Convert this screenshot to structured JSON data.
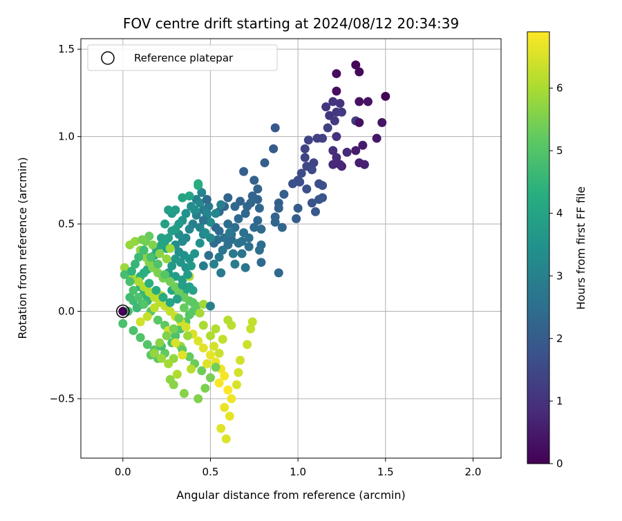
{
  "chart_data": {
    "type": "scatter",
    "title": "FOV centre drift starting at 2024/08/12 20:34:39",
    "xlabel": "Angular distance from reference (arcmin)",
    "ylabel": "Rotation from reference (arcmin)",
    "xlim": [
      -0.24,
      2.16
    ],
    "ylim": [
      -0.84,
      1.56
    ],
    "xticks": [
      0.0,
      0.5,
      1.0,
      1.5,
      2.0
    ],
    "xtick_labels": [
      "0.0",
      "0.5",
      "1.0",
      "1.5",
      "2.0"
    ],
    "yticks": [
      -0.5,
      0.0,
      0.5,
      1.0,
      1.5
    ],
    "ytick_labels": [
      "−0.5",
      "0.0",
      "0.5",
      "1.0",
      "1.5"
    ],
    "grid": true,
    "legend": {
      "placement": "top-left",
      "entries": [
        "Reference platepar"
      ]
    },
    "reference_point": {
      "x": 0.0,
      "y": 0.0
    },
    "colorbar": {
      "label": "Hours from first FF file",
      "min": 0,
      "max": 6.9,
      "ticks": [
        0,
        1,
        2,
        3,
        4,
        5,
        6
      ],
      "tick_labels": [
        "0",
        "1",
        "2",
        "3",
        "4",
        "5",
        "6"
      ],
      "colormap": "viridis"
    },
    "points": [
      [
        1.5,
        1.23,
        0.05
      ],
      [
        1.33,
        1.41,
        0.1
      ],
      [
        1.35,
        1.37,
        0.15
      ],
      [
        1.22,
        1.36,
        0.2
      ],
      [
        1.22,
        1.26,
        0.25
      ],
      [
        1.35,
        1.2,
        0.3
      ],
      [
        1.4,
        1.2,
        0.35
      ],
      [
        1.48,
        1.08,
        0.4
      ],
      [
        1.45,
        0.99,
        0.45
      ],
      [
        1.37,
        0.95,
        0.5
      ],
      [
        1.33,
        0.92,
        0.55
      ],
      [
        1.35,
        0.85,
        0.6
      ],
      [
        1.38,
        0.84,
        0.65
      ],
      [
        1.25,
        0.83,
        0.7
      ],
      [
        1.24,
        0.84,
        0.75
      ],
      [
        1.2,
        0.84,
        0.8
      ],
      [
        1.22,
        0.88,
        0.85
      ],
      [
        1.2,
        0.92,
        0.9
      ],
      [
        1.22,
        1.0,
        0.95
      ],
      [
        1.2,
        1.2,
        1.0
      ],
      [
        1.18,
        1.12,
        1.05
      ],
      [
        1.22,
        1.14,
        1.1
      ],
      [
        1.25,
        1.14,
        1.15
      ],
      [
        1.21,
        1.09,
        1.2
      ],
      [
        1.33,
        1.09,
        1.25
      ],
      [
        1.35,
        1.08,
        0.3
      ],
      [
        1.17,
        1.05,
        1.3
      ],
      [
        1.14,
        0.99,
        1.35
      ],
      [
        1.06,
        0.98,
        1.4
      ],
      [
        1.04,
        0.88,
        1.45
      ],
      [
        1.05,
        0.83,
        1.5
      ],
      [
        1.08,
        0.81,
        1.55
      ],
      [
        1.02,
        0.79,
        1.6
      ],
      [
        1.0,
        0.75,
        1.65
      ],
      [
        0.97,
        0.73,
        1.7
      ],
      [
        1.14,
        0.72,
        1.75
      ],
      [
        1.14,
        0.65,
        1.8
      ],
      [
        1.12,
        0.64,
        1.85
      ],
      [
        1.1,
        0.57,
        1.9
      ],
      [
        1.0,
        0.59,
        1.95
      ],
      [
        0.99,
        0.53,
        2.0
      ],
      [
        0.92,
        0.67,
        2.05
      ],
      [
        0.89,
        0.62,
        2.1
      ],
      [
        0.89,
        0.59,
        2.15
      ],
      [
        0.87,
        0.54,
        2.2
      ],
      [
        0.87,
        0.51,
        2.25
      ],
      [
        0.91,
        0.48,
        2.3
      ],
      [
        0.86,
        0.93,
        2.0
      ],
      [
        0.87,
        1.05,
        1.9
      ],
      [
        0.81,
        0.85,
        2.05
      ],
      [
        0.69,
        0.8,
        2.1
      ],
      [
        0.77,
        0.7,
        2.2
      ],
      [
        0.77,
        0.64,
        2.25
      ],
      [
        0.78,
        0.59,
        2.3
      ],
      [
        0.77,
        0.52,
        2.35
      ],
      [
        0.75,
        0.48,
        2.4
      ],
      [
        0.79,
        0.38,
        2.45
      ],
      [
        0.78,
        0.35,
        2.5
      ],
      [
        0.72,
        0.42,
        2.55
      ],
      [
        0.69,
        0.45,
        2.6
      ],
      [
        0.68,
        0.33,
        2.65
      ],
      [
        0.7,
        0.25,
        2.7
      ],
      [
        0.62,
        0.41,
        2.5
      ],
      [
        0.58,
        0.42,
        2.55
      ],
      [
        0.54,
        0.41,
        2.6
      ],
      [
        0.57,
        0.35,
        2.7
      ],
      [
        0.55,
        0.31,
        2.75
      ],
      [
        0.63,
        0.33,
        2.8
      ],
      [
        0.56,
        0.22,
        2.85
      ],
      [
        0.46,
        0.26,
        2.9
      ],
      [
        0.58,
        0.6,
        2.2
      ],
      [
        0.6,
        0.65,
        2.25
      ],
      [
        0.55,
        0.57,
        2.3
      ],
      [
        0.53,
        0.48,
        2.35
      ],
      [
        0.55,
        0.46,
        2.4
      ],
      [
        0.52,
        0.39,
        2.45
      ],
      [
        0.49,
        0.32,
        2.5
      ],
      [
        0.75,
        0.75,
        2.15
      ],
      [
        0.74,
        0.66,
        2.2
      ],
      [
        0.71,
        0.6,
        2.3
      ],
      [
        0.66,
        0.53,
        2.4
      ],
      [
        0.64,
        0.48,
        2.45
      ],
      [
        0.62,
        0.44,
        2.5
      ],
      [
        0.6,
        0.38,
        2.55
      ],
      [
        0.89,
        0.22,
        2.35
      ],
      [
        0.79,
        0.28,
        2.4
      ],
      [
        0.49,
        0.6,
        2.8
      ],
      [
        0.48,
        0.55,
        2.85
      ],
      [
        0.46,
        0.58,
        2.9
      ],
      [
        0.42,
        0.55,
        2.95
      ],
      [
        0.4,
        0.5,
        3.0
      ],
      [
        0.44,
        0.48,
        3.05
      ],
      [
        0.46,
        0.44,
        3.1
      ],
      [
        0.38,
        0.47,
        3.15
      ],
      [
        0.36,
        0.42,
        3.2
      ],
      [
        0.34,
        0.4,
        3.25
      ],
      [
        0.32,
        0.44,
        3.3
      ],
      [
        0.3,
        0.38,
        3.35
      ],
      [
        0.32,
        0.34,
        3.4
      ],
      [
        0.35,
        0.32,
        3.45
      ],
      [
        0.38,
        0.3,
        3.5
      ],
      [
        0.36,
        0.25,
        3.55
      ],
      [
        0.33,
        0.28,
        3.6
      ],
      [
        0.3,
        0.3,
        3.65
      ],
      [
        0.28,
        0.26,
        3.7
      ],
      [
        0.26,
        0.22,
        3.75
      ],
      [
        0.3,
        0.2,
        3.8
      ],
      [
        0.34,
        0.18,
        3.85
      ],
      [
        0.38,
        0.14,
        3.9
      ],
      [
        0.4,
        0.12,
        3.95
      ],
      [
        0.35,
        0.11,
        4.0
      ],
      [
        0.32,
        0.1,
        4.05
      ],
      [
        0.28,
        0.12,
        4.1
      ],
      [
        0.42,
        0.64,
        3.0
      ],
      [
        0.45,
        0.68,
        3.1
      ],
      [
        0.44,
        0.62,
        3.2
      ],
      [
        0.41,
        0.58,
        3.3
      ],
      [
        0.39,
        0.6,
        3.4
      ],
      [
        0.36,
        0.56,
        3.5
      ],
      [
        0.34,
        0.52,
        3.6
      ],
      [
        0.32,
        0.5,
        3.7
      ],
      [
        0.3,
        0.47,
        3.8
      ],
      [
        0.28,
        0.46,
        3.85
      ],
      [
        0.26,
        0.42,
        3.9
      ],
      [
        0.24,
        0.4,
        3.95
      ],
      [
        0.28,
        0.56,
        3.75
      ],
      [
        0.3,
        0.58,
        3.8
      ],
      [
        0.26,
        0.58,
        3.85
      ],
      [
        0.24,
        0.5,
        3.9
      ],
      [
        0.22,
        0.42,
        3.95
      ],
      [
        0.34,
        0.65,
        4.0
      ],
      [
        0.38,
        0.66,
        4.05
      ],
      [
        0.43,
        0.72,
        4.2
      ],
      [
        0.43,
        0.73,
        4.25
      ],
      [
        0.48,
        0.56,
        3.1
      ],
      [
        0.5,
        0.42,
        3.2
      ],
      [
        0.25,
        0.36,
        4.0
      ],
      [
        0.22,
        0.38,
        4.05
      ],
      [
        0.19,
        0.36,
        4.1
      ],
      [
        0.18,
        0.32,
        4.15
      ],
      [
        0.16,
        0.28,
        4.2
      ],
      [
        0.14,
        0.24,
        4.25
      ],
      [
        0.12,
        0.22,
        4.3
      ],
      [
        0.1,
        0.2,
        4.35
      ],
      [
        0.08,
        0.18,
        4.4
      ],
      [
        0.1,
        0.14,
        4.45
      ],
      [
        0.12,
        0.1,
        4.5
      ],
      [
        0.14,
        0.06,
        4.55
      ],
      [
        0.11,
        0.04,
        4.6
      ],
      [
        0.08,
        0.02,
        4.65
      ],
      [
        0.06,
        0.06,
        4.7
      ],
      [
        0.04,
        0.08,
        4.75
      ],
      [
        0.03,
        0.0,
        4.8
      ],
      [
        0.0,
        -0.07,
        4.85
      ],
      [
        0.06,
        -0.11,
        4.9
      ],
      [
        0.1,
        -0.15,
        4.95
      ],
      [
        0.14,
        -0.19,
        5.0
      ],
      [
        0.18,
        -0.22,
        5.05
      ],
      [
        0.2,
        -0.27,
        5.1
      ],
      [
        0.16,
        -0.25,
        5.15
      ],
      [
        0.24,
        -0.24,
        5.2
      ],
      [
        0.22,
        -0.2,
        4.8
      ],
      [
        0.28,
        -0.18,
        4.85
      ],
      [
        0.3,
        -0.14,
        4.9
      ],
      [
        0.33,
        -0.1,
        4.95
      ],
      [
        0.36,
        -0.06,
        5.0
      ],
      [
        0.38,
        -0.02,
        5.05
      ],
      [
        0.4,
        0.0,
        5.1
      ],
      [
        0.42,
        0.03,
        5.15
      ],
      [
        0.38,
        0.06,
        5.2
      ],
      [
        0.35,
        0.08,
        5.25
      ],
      [
        0.32,
        0.11,
        5.3
      ],
      [
        0.3,
        0.14,
        5.35
      ],
      [
        0.27,
        0.17,
        5.4
      ],
      [
        0.23,
        0.19,
        5.45
      ],
      [
        0.2,
        0.22,
        5.5
      ],
      [
        0.17,
        0.25,
        5.55
      ],
      [
        0.15,
        0.28,
        5.6
      ],
      [
        0.13,
        0.31,
        5.65
      ],
      [
        0.1,
        0.35,
        5.7
      ],
      [
        0.07,
        0.4,
        5.75
      ],
      [
        0.04,
        0.38,
        5.8
      ],
      [
        0.01,
        0.25,
        5.85
      ],
      [
        0.02,
        0.21,
        5.9
      ],
      [
        0.05,
        0.2,
        5.95
      ],
      [
        0.09,
        0.17,
        6.0
      ],
      [
        0.12,
        0.14,
        6.05
      ],
      [
        0.15,
        0.11,
        6.1
      ],
      [
        0.18,
        0.08,
        6.15
      ],
      [
        0.21,
        0.05,
        6.2
      ],
      [
        0.24,
        0.03,
        6.25
      ],
      [
        0.27,
        0.0,
        6.3
      ],
      [
        0.3,
        -0.03,
        6.35
      ],
      [
        0.33,
        -0.06,
        6.4
      ],
      [
        0.36,
        -0.09,
        6.45
      ],
      [
        0.4,
        -0.13,
        6.5
      ],
      [
        0.43,
        -0.17,
        6.55
      ],
      [
        0.46,
        -0.21,
        6.6
      ],
      [
        0.5,
        -0.25,
        6.65
      ],
      [
        0.53,
        -0.29,
        6.7
      ],
      [
        0.56,
        -0.33,
        6.75
      ],
      [
        0.58,
        -0.37,
        6.8
      ],
      [
        0.55,
        -0.41,
        6.85
      ],
      [
        0.6,
        -0.45,
        6.9
      ],
      [
        0.62,
        -0.5,
        6.75
      ],
      [
        0.58,
        -0.55,
        6.7
      ],
      [
        0.61,
        -0.6,
        6.65
      ],
      [
        0.56,
        -0.67,
        6.6
      ],
      [
        0.59,
        -0.73,
        6.55
      ],
      [
        0.65,
        -0.42,
        6.5
      ],
      [
        0.66,
        -0.35,
        6.45
      ],
      [
        0.67,
        -0.28,
        6.4
      ],
      [
        0.71,
        -0.19,
        6.35
      ],
      [
        0.73,
        -0.1,
        6.3
      ],
      [
        0.74,
        -0.06,
        6.25
      ],
      [
        0.62,
        -0.08,
        6.2
      ],
      [
        0.6,
        -0.05,
        6.15
      ],
      [
        0.53,
        -0.1,
        6.1
      ],
      [
        0.5,
        -0.14,
        6.05
      ],
      [
        0.46,
        -0.08,
        6.0
      ],
      [
        0.44,
        -0.01,
        5.95
      ],
      [
        0.46,
        0.04,
        5.9
      ],
      [
        0.37,
        -0.14,
        5.85
      ],
      [
        0.33,
        -0.2,
        5.8
      ],
      [
        0.29,
        -0.27,
        5.75
      ],
      [
        0.27,
        -0.39,
        5.7
      ],
      [
        0.29,
        -0.42,
        5.65
      ],
      [
        0.35,
        -0.47,
        5.6
      ],
      [
        0.43,
        -0.5,
        5.55
      ],
      [
        0.47,
        -0.44,
        5.5
      ],
      [
        0.5,
        -0.38,
        5.45
      ],
      [
        0.53,
        -0.32,
        5.4
      ],
      [
        0.45,
        -0.34,
        5.35
      ],
      [
        0.41,
        -0.3,
        5.3
      ],
      [
        0.38,
        -0.26,
        5.25
      ],
      [
        0.34,
        -0.22,
        5.2
      ],
      [
        0.24,
        -0.08,
        5.15
      ],
      [
        0.2,
        -0.05,
        5.1
      ],
      [
        0.16,
        0.0,
        5.05
      ],
      [
        0.12,
        0.04,
        5.0
      ],
      [
        0.09,
        0.08,
        4.95
      ],
      [
        0.06,
        0.12,
        4.9
      ],
      [
        0.04,
        0.17,
        4.85
      ],
      [
        0.01,
        0.21,
        4.8
      ],
      [
        0.15,
        0.43,
        5.25
      ],
      [
        0.13,
        0.4,
        5.35
      ],
      [
        0.11,
        0.41,
        5.45
      ],
      [
        0.17,
        0.38,
        5.55
      ],
      [
        0.21,
        0.33,
        5.65
      ],
      [
        0.25,
        0.3,
        5.75
      ],
      [
        0.27,
        0.36,
        5.85
      ],
      [
        0.38,
        0.2,
        6.0
      ],
      [
        0.22,
        0.09,
        6.1
      ],
      [
        0.18,
        0.02,
        6.2
      ],
      [
        0.14,
        -0.03,
        6.3
      ],
      [
        0.1,
        -0.06,
        6.4
      ],
      [
        0.26,
        -0.11,
        6.45
      ],
      [
        0.3,
        -0.18,
        6.5
      ],
      [
        0.34,
        -0.25,
        6.6
      ],
      [
        0.48,
        -0.3,
        6.55
      ],
      [
        0.52,
        -0.2,
        6.45
      ],
      [
        0.55,
        -0.24,
        6.35
      ],
      [
        0.57,
        -0.16,
        6.25
      ],
      [
        0.39,
        -0.33,
        6.15
      ],
      [
        0.31,
        -0.36,
        6.05
      ],
      [
        0.26,
        -0.3,
        5.95
      ],
      [
        0.22,
        -0.27,
        5.85
      ],
      [
        0.18,
        -0.24,
        5.75
      ],
      [
        0.21,
        -0.18,
        5.65
      ],
      [
        0.25,
        -0.14,
        5.55
      ],
      [
        0.29,
        -0.1,
        5.45
      ],
      [
        0.32,
        -0.04,
        5.35
      ],
      [
        0.35,
        0.02,
        5.25
      ],
      [
        0.4,
        0.05,
        5.15
      ],
      [
        0.24,
        0.21,
        5.05
      ],
      [
        0.2,
        0.27,
        4.95
      ],
      [
        0.16,
        0.31,
        4.85
      ],
      [
        0.12,
        0.35,
        4.75
      ],
      [
        0.09,
        0.31,
        4.65
      ],
      [
        0.07,
        0.27,
        4.55
      ],
      [
        0.05,
        0.23,
        4.45
      ],
      [
        0.15,
        0.16,
        4.35
      ],
      [
        0.19,
        0.12,
        4.25
      ],
      [
        0.23,
        0.08,
        4.15
      ],
      [
        0.27,
        0.05,
        4.05
      ],
      [
        0.31,
        0.07,
        3.95
      ],
      [
        0.34,
        0.15,
        3.85
      ],
      [
        0.37,
        0.21,
        3.75
      ],
      [
        0.39,
        0.26,
        3.65
      ],
      [
        0.41,
        0.33,
        3.55
      ],
      [
        0.44,
        0.39,
        3.45
      ],
      [
        0.47,
        0.45,
        3.35
      ],
      [
        0.5,
        0.51,
        3.25
      ],
      [
        0.53,
        0.56,
        3.15
      ],
      [
        0.56,
        0.61,
        2.95
      ],
      [
        0.5,
        0.03,
        3.0
      ],
      [
        0.61,
        0.45,
        2.75
      ],
      [
        0.66,
        0.39,
        2.65
      ],
      [
        0.64,
        0.27,
        2.85
      ],
      [
        0.52,
        0.27,
        3.0
      ],
      [
        0.6,
        0.5,
        2.45
      ],
      [
        0.68,
        0.4,
        2.6
      ],
      [
        0.72,
        0.37,
        2.55
      ],
      [
        0.73,
        0.62,
        2.3
      ],
      [
        0.79,
        0.47,
        2.4
      ],
      [
        0.64,
        0.6,
        2.35
      ],
      [
        0.67,
        0.63,
        2.25
      ],
      [
        0.7,
        0.56,
        2.3
      ],
      [
        0.48,
        0.64,
        2.4
      ],
      [
        0.46,
        0.52,
        2.7
      ],
      [
        1.08,
        0.62,
        1.8
      ],
      [
        1.12,
        0.73,
        1.6
      ],
      [
        1.05,
        0.7,
        1.7
      ],
      [
        1.01,
        0.74,
        1.65
      ],
      [
        1.09,
        0.85,
        1.4
      ],
      [
        1.04,
        0.93,
        1.4
      ],
      [
        1.11,
        0.99,
        1.3
      ],
      [
        1.16,
        1.17,
        1.05
      ],
      [
        1.24,
        1.19,
        1.0
      ],
      [
        1.28,
        0.91,
        0.8
      ]
    ]
  }
}
